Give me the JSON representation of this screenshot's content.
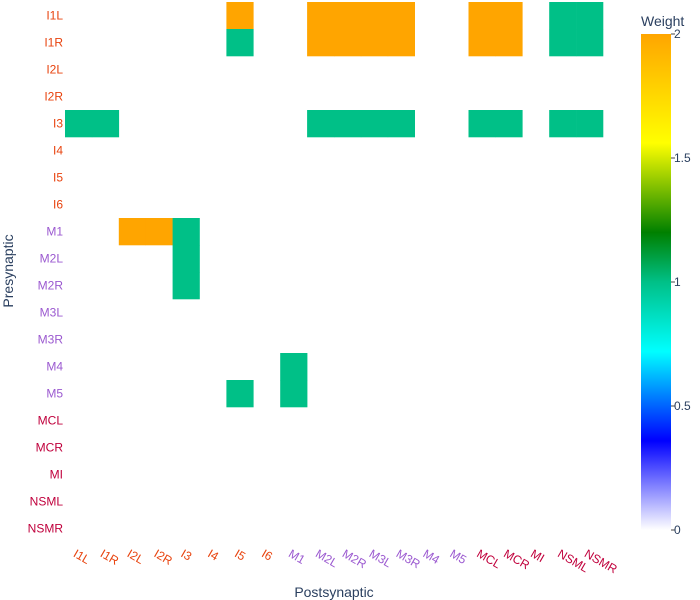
{
  "chart_data": {
    "type": "heatmap",
    "xlabel": "Postsynaptic",
    "ylabel": "Presynaptic",
    "colorbar": {
      "title": "Weight",
      "range": [
        0,
        2
      ],
      "ticks": [
        "0",
        "0.5",
        "1",
        "1.5",
        "2"
      ],
      "tick_values": [
        0,
        0.5,
        1,
        1.5,
        2
      ],
      "colorscale": [
        [
          0,
          "#ffffff"
        ],
        [
          0.18,
          "#0000ff"
        ],
        [
          0.36,
          "#00ffff"
        ],
        [
          0.5,
          "#00c087"
        ],
        [
          0.6,
          "#008000"
        ],
        [
          0.78,
          "#ffff00"
        ],
        [
          1,
          "#ffa500"
        ]
      ]
    },
    "grid": false,
    "rows": [
      "I1L",
      "I1R",
      "I2L",
      "I2R",
      "I3",
      "I4",
      "I5",
      "I6",
      "M1",
      "M2L",
      "M2R",
      "M3L",
      "M3R",
      "M4",
      "M5",
      "MCL",
      "MCR",
      "MI",
      "NSML",
      "NSMR"
    ],
    "columns": [
      "I1L",
      "I1R",
      "I2L",
      "I2R",
      "I3",
      "I4",
      "I5",
      "I6",
      "M1",
      "M2L",
      "M2R",
      "M3L",
      "M3R",
      "M4",
      "M5",
      "MCL",
      "MCR",
      "MI",
      "NSML",
      "NSMR"
    ],
    "cells": [
      {
        "row": "I1L",
        "col": "I5",
        "value": 2
      },
      {
        "row": "I1L",
        "col": "M2L",
        "value": 2
      },
      {
        "row": "I1L",
        "col": "M2R",
        "value": 2
      },
      {
        "row": "I1L",
        "col": "M3L",
        "value": 2
      },
      {
        "row": "I1L",
        "col": "M3R",
        "value": 2
      },
      {
        "row": "I1L",
        "col": "MCL",
        "value": 2
      },
      {
        "row": "I1L",
        "col": "MCR",
        "value": 2
      },
      {
        "row": "I1L",
        "col": "NSML",
        "value": 1
      },
      {
        "row": "I1L",
        "col": "NSMR",
        "value": 1
      },
      {
        "row": "I1R",
        "col": "I5",
        "value": 1
      },
      {
        "row": "I1R",
        "col": "M2L",
        "value": 2
      },
      {
        "row": "I1R",
        "col": "M2R",
        "value": 2
      },
      {
        "row": "I1R",
        "col": "M3L",
        "value": 2
      },
      {
        "row": "I1R",
        "col": "M3R",
        "value": 2
      },
      {
        "row": "I1R",
        "col": "MCL",
        "value": 2
      },
      {
        "row": "I1R",
        "col": "MCR",
        "value": 2
      },
      {
        "row": "I1R",
        "col": "NSML",
        "value": 1
      },
      {
        "row": "I1R",
        "col": "NSMR",
        "value": 1
      },
      {
        "row": "I3",
        "col": "I1L",
        "value": 1
      },
      {
        "row": "I3",
        "col": "I1R",
        "value": 1
      },
      {
        "row": "I3",
        "col": "M2L",
        "value": 1
      },
      {
        "row": "I3",
        "col": "M2R",
        "value": 1
      },
      {
        "row": "I3",
        "col": "M3L",
        "value": 1
      },
      {
        "row": "I3",
        "col": "M3R",
        "value": 1
      },
      {
        "row": "I3",
        "col": "MCL",
        "value": 1
      },
      {
        "row": "I3",
        "col": "MCR",
        "value": 1
      },
      {
        "row": "I3",
        "col": "NSML",
        "value": 1
      },
      {
        "row": "I3",
        "col": "NSMR",
        "value": 1
      },
      {
        "row": "M1",
        "col": "I2L",
        "value": 2
      },
      {
        "row": "M1",
        "col": "I2R",
        "value": 2
      },
      {
        "row": "M1",
        "col": "I3",
        "value": 1
      },
      {
        "row": "M2L",
        "col": "I3",
        "value": 1
      },
      {
        "row": "M2R",
        "col": "I3",
        "value": 1
      },
      {
        "row": "M4",
        "col": "M1",
        "value": 1
      },
      {
        "row": "M5",
        "col": "I5",
        "value": 1
      },
      {
        "row": "M5",
        "col": "M1",
        "value": 1
      }
    ],
    "label_colors": {
      "I": "#e8430e",
      "M": "#9b59d0",
      "other": "#c0003c"
    },
    "text_color": "#2a3f5f"
  }
}
